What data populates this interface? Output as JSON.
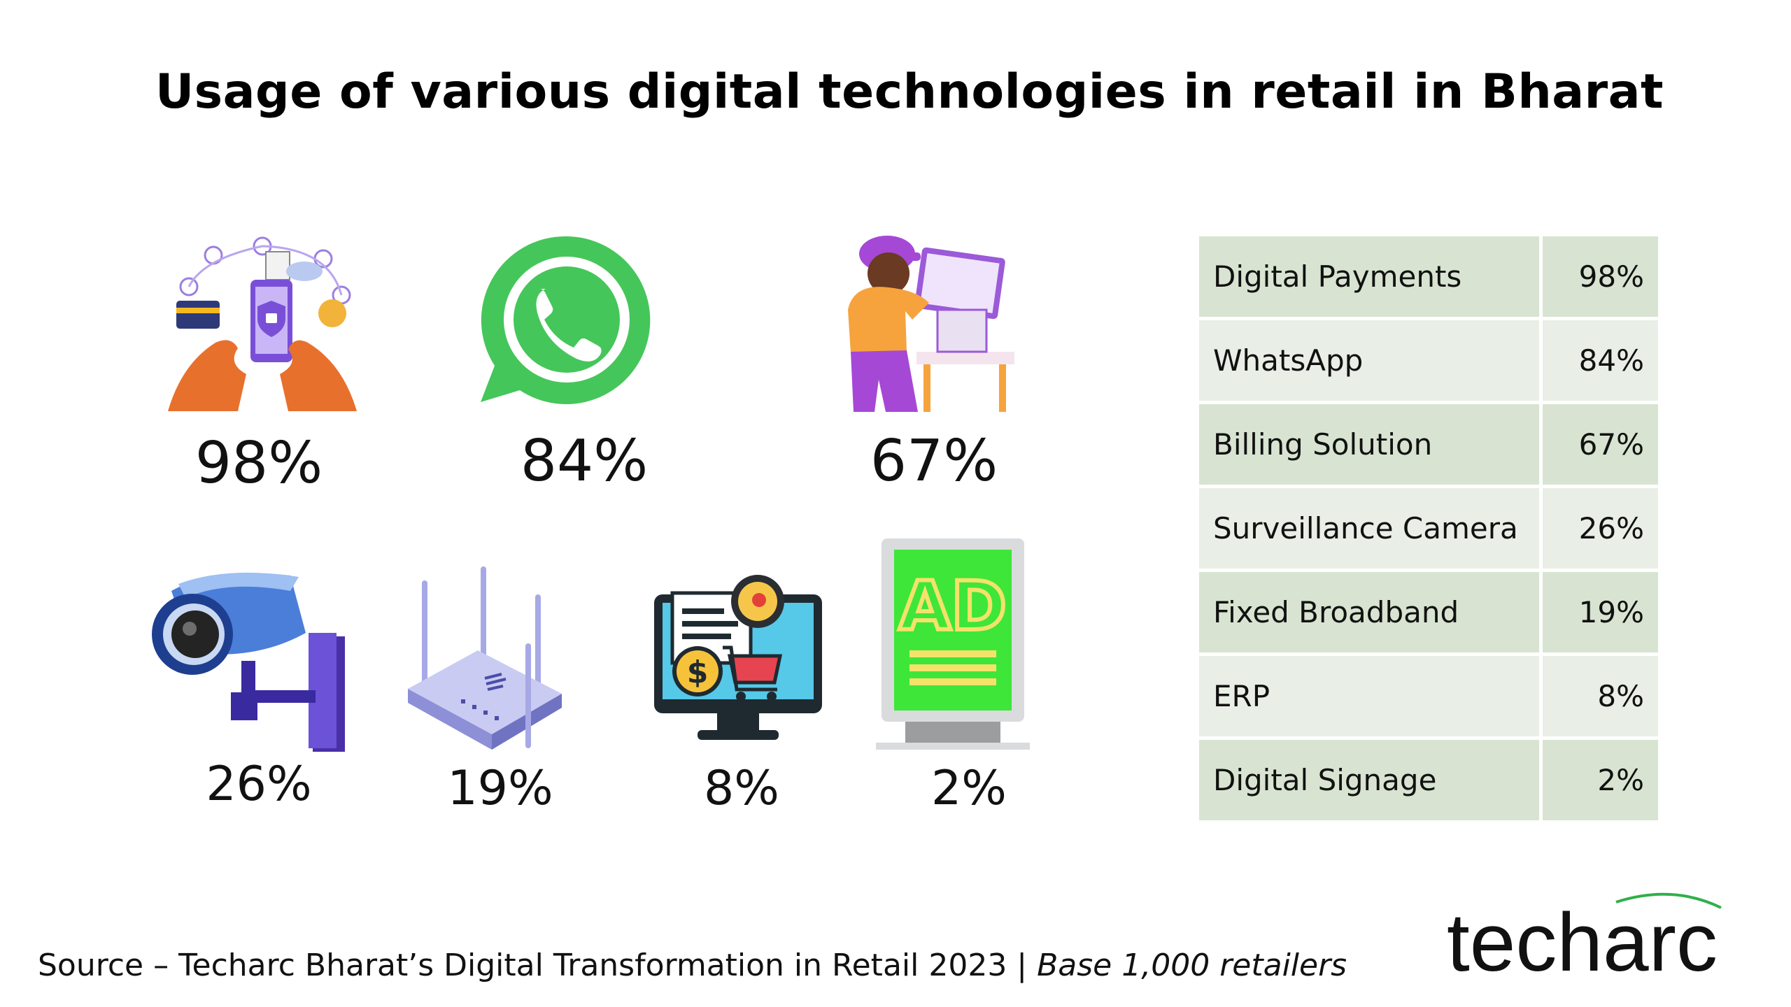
{
  "title": "Usage of various digital technologies in retail in Bharat",
  "chart_data": {
    "type": "table",
    "title": "Usage of various digital technologies in retail in Bharat",
    "categories": [
      "Digital Payments",
      "WhatsApp",
      "Billing Solution",
      "Surveillance Camera",
      "Fixed Broadband",
      "ERP",
      "Digital Signage"
    ],
    "values": [
      98,
      84,
      67,
      26,
      19,
      8,
      2
    ],
    "value_labels": [
      "98%",
      "84%",
      "67%",
      "26%",
      "19%",
      "8%",
      "2%"
    ],
    "unit": "%"
  },
  "tiles": [
    {
      "icon": "digital-payments-icon",
      "label": "98%"
    },
    {
      "icon": "whatsapp-icon",
      "label": "84%"
    },
    {
      "icon": "billing-pos-icon",
      "label": "67%"
    },
    {
      "icon": "surveillance-camera-icon",
      "label": "26%"
    },
    {
      "icon": "router-icon",
      "label": "19%"
    },
    {
      "icon": "erp-monitor-icon",
      "label": "8%"
    },
    {
      "icon": "digital-signage-icon",
      "label": "2%"
    }
  ],
  "signage_text": "AD",
  "source": {
    "text": "Source – Techarc Bharat’s Digital Transformation in Retail 2023  | ",
    "base": "Base 1,000 retailers"
  },
  "logo": "techarc",
  "colors": {
    "table_row_dark": "#d8e4d1",
    "table_row_light": "#e9efe6",
    "whatsapp_green": "#45c65a",
    "signage_green": "#3ee63a",
    "logo_arc_green": "#2fb04a"
  }
}
